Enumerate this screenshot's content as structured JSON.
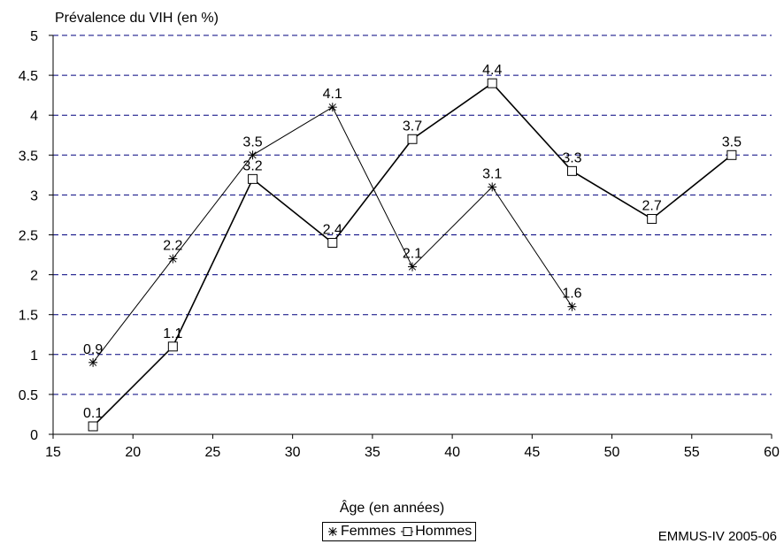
{
  "chart_data": {
    "type": "line",
    "title": "",
    "ylabel": "Prévalence du VIH (en %)",
    "xlabel": "Âge (en années)",
    "xlim": [
      15,
      60
    ],
    "ylim": [
      0,
      5
    ],
    "x_ticks": [
      15,
      20,
      25,
      30,
      35,
      40,
      45,
      50,
      55,
      60
    ],
    "y_ticks": [
      0,
      0.5,
      1,
      1.5,
      2,
      2.5,
      3,
      3.5,
      4,
      4.5,
      5
    ],
    "grid": "horizontal dashed",
    "legend_position": "bottom-center",
    "series": [
      {
        "name": "Femmes",
        "marker": "star",
        "x": [
          17.5,
          22.5,
          27.5,
          32.5,
          37.5,
          42.5,
          47.5
        ],
        "values": [
          0.9,
          2.2,
          3.5,
          4.1,
          2.1,
          3.1,
          1.6
        ],
        "labels": [
          "0.9",
          "2.2",
          "3.5",
          "4.1",
          "2.1",
          "3.1",
          "1.6"
        ]
      },
      {
        "name": "Hommes",
        "marker": "square",
        "x": [
          17.5,
          22.5,
          27.5,
          32.5,
          37.5,
          42.5,
          47.5,
          52.5,
          57.5
        ],
        "values": [
          0.1,
          1.1,
          3.2,
          2.4,
          3.7,
          4.4,
          3.3,
          2.7,
          3.5
        ],
        "labels": [
          "0.1",
          "1.1",
          "3.2",
          "2.4",
          "3.7",
          "4.4",
          "3.3",
          "2.7",
          "3.5"
        ]
      }
    ],
    "colors": {
      "line": "#000000",
      "gridline": "#00007f",
      "axis": "#000000"
    }
  },
  "source_note": "EMMUS-IV 2005-06"
}
